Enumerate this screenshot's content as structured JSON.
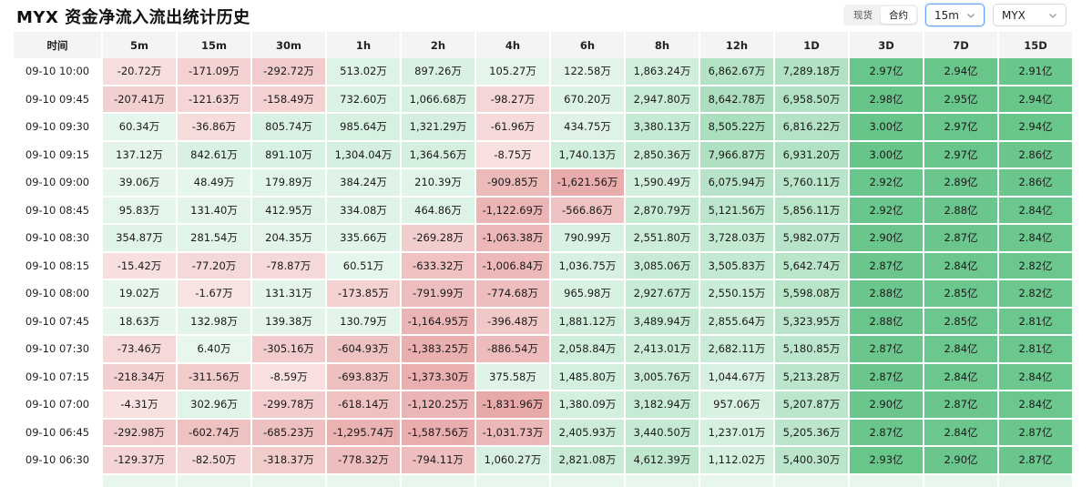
{
  "header": {
    "title": "MYX 资金净流入流出统计历史",
    "segment": [
      "现货",
      "合约"
    ],
    "segment_active": 1,
    "interval": "15m",
    "coin": "MYX"
  },
  "columns": [
    "时间",
    "5m",
    "15m",
    "30m",
    "1h",
    "2h",
    "4h",
    "6h",
    "8h",
    "12h",
    "1D",
    "3D",
    "7D",
    "15D"
  ],
  "rows": [
    {
      "time": "09-10 10:00",
      "values": [
        "-20.72万",
        "-171.09万",
        "-292.72万",
        "513.02万",
        "897.26万",
        "105.27万",
        "122.58万",
        "1,863.24万",
        "6,862.67万",
        "7,289.18万",
        "2.97亿",
        "2.94亿",
        "2.91亿"
      ]
    },
    {
      "time": "09-10 09:45",
      "values": [
        "-207.41万",
        "-121.63万",
        "-158.49万",
        "732.60万",
        "1,066.68万",
        "-98.27万",
        "670.20万",
        "2,947.80万",
        "8,642.78万",
        "6,958.50万",
        "2.98亿",
        "2.95亿",
        "2.94亿"
      ]
    },
    {
      "time": "09-10 09:30",
      "values": [
        "60.34万",
        "-36.86万",
        "805.74万",
        "985.64万",
        "1,321.29万",
        "-61.96万",
        "434.75万",
        "3,380.13万",
        "8,505.22万",
        "6,816.22万",
        "3.00亿",
        "2.97亿",
        "2.94亿"
      ]
    },
    {
      "time": "09-10 09:15",
      "values": [
        "137.12万",
        "842.61万",
        "891.10万",
        "1,304.04万",
        "1,364.56万",
        "-8.75万",
        "1,740.13万",
        "2,850.36万",
        "7,966.87万",
        "6,931.20万",
        "3.00亿",
        "2.97亿",
        "2.86亿"
      ]
    },
    {
      "time": "09-10 09:00",
      "values": [
        "39.06万",
        "48.49万",
        "179.89万",
        "384.24万",
        "210.39万",
        "-909.85万",
        "-1,621.56万",
        "1,590.49万",
        "6,075.94万",
        "5,760.11万",
        "2.92亿",
        "2.89亿",
        "2.86亿"
      ]
    },
    {
      "time": "09-10 08:45",
      "values": [
        "95.83万",
        "131.40万",
        "412.95万",
        "334.08万",
        "464.86万",
        "-1,122.69万",
        "-566.86万",
        "2,870.79万",
        "5,121.56万",
        "5,856.11万",
        "2.92亿",
        "2.88亿",
        "2.84亿"
      ]
    },
    {
      "time": "09-10 08:30",
      "values": [
        "354.87万",
        "281.54万",
        "204.35万",
        "335.66万",
        "-269.28万",
        "-1,063.38万",
        "790.99万",
        "2,551.80万",
        "3,728.03万",
        "5,982.07万",
        "2.90亿",
        "2.87亿",
        "2.84亿"
      ]
    },
    {
      "time": "09-10 08:15",
      "values": [
        "-15.42万",
        "-77.20万",
        "-78.87万",
        "60.51万",
        "-633.32万",
        "-1,006.84万",
        "1,036.75万",
        "3,085.06万",
        "3,505.83万",
        "5,642.74万",
        "2.87亿",
        "2.84亿",
        "2.82亿"
      ]
    },
    {
      "time": "09-10 08:00",
      "values": [
        "19.02万",
        "-1.67万",
        "131.31万",
        "-173.85万",
        "-791.99万",
        "-774.68万",
        "965.98万",
        "2,927.67万",
        "2,550.15万",
        "5,598.08万",
        "2.88亿",
        "2.85亿",
        "2.82亿"
      ]
    },
    {
      "time": "09-10 07:45",
      "values": [
        "18.63万",
        "132.98万",
        "139.38万",
        "130.79万",
        "-1,164.95万",
        "-396.48万",
        "1,881.12万",
        "3,489.94万",
        "2,855.64万",
        "5,323.95万",
        "2.88亿",
        "2.85亿",
        "2.81亿"
      ]
    },
    {
      "time": "09-10 07:30",
      "values": [
        "-73.46万",
        "6.40万",
        "-305.16万",
        "-604.93万",
        "-1,383.25万",
        "-886.54万",
        "2,058.84万",
        "2,413.01万",
        "2,682.11万",
        "5,180.85万",
        "2.87亿",
        "2.84亿",
        "2.81亿"
      ]
    },
    {
      "time": "09-10 07:15",
      "values": [
        "-218.34万",
        "-311.56万",
        "-8.59万",
        "-693.83万",
        "-1,373.30万",
        "375.58万",
        "1,485.80万",
        "3,005.76万",
        "1,044.67万",
        "5,213.28万",
        "2.87亿",
        "2.84亿",
        "2.84亿"
      ]
    },
    {
      "time": "09-10 07:00",
      "values": [
        "-4.31万",
        "302.96万",
        "-299.78万",
        "-618.14万",
        "-1,120.25万",
        "-1,831.96万",
        "1,380.09万",
        "3,182.94万",
        "957.06万",
        "5,207.87万",
        "2.90亿",
        "2.87亿",
        "2.84亿"
      ]
    },
    {
      "time": "09-10 06:45",
      "values": [
        "-292.98万",
        "-602.74万",
        "-685.23万",
        "-1,295.74万",
        "-1,587.56万",
        "-1,031.73万",
        "2,405.93万",
        "3,440.50万",
        "1,237.01万",
        "5,205.36万",
        "2.87亿",
        "2.84亿",
        "2.87亿"
      ]
    },
    {
      "time": "09-10 06:30",
      "values": [
        "-129.37万",
        "-82.50万",
        "-318.37万",
        "-778.32万",
        "-794.11万",
        "1,060.27万",
        "2,821.08万",
        "4,612.39万",
        "1,112.02万",
        "5,400.30万",
        "2.93亿",
        "2.90亿",
        "2.87亿"
      ]
    },
    {
      "time": "",
      "values": [
        "",
        "",
        "",
        "",
        "",
        "",
        "",
        "",
        "",
        "",
        "",
        "",
        ""
      ]
    }
  ],
  "colors": {
    "neg_light": "#f9e4e4",
    "neg_dark": "#e8a9a9",
    "pos_light": "#e8f7ee",
    "pos_dark": "#67c58a",
    "header_bg": "#f3f4f6"
  }
}
